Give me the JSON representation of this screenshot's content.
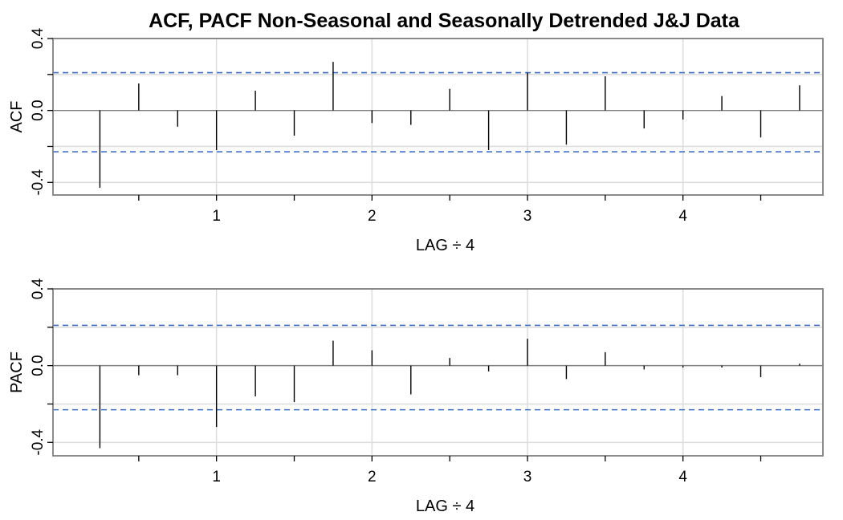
{
  "chart_data": {
    "title": "ACF, PACF Non-Seasonal and Seasonally Detrended J&J Data",
    "panels": [
      {
        "type": "bar",
        "ylabel": "ACF",
        "xlabel": "LAG ÷ 4",
        "x": [
          0.25,
          0.5,
          0.75,
          1.0,
          1.25,
          1.5,
          1.75,
          2.0,
          2.25,
          2.5,
          2.75,
          3.0,
          3.25,
          3.5,
          3.75,
          4.0,
          4.25,
          4.5,
          4.75
        ],
        "values": [
          -0.43,
          0.15,
          -0.09,
          -0.22,
          0.11,
          -0.14,
          0.27,
          -0.07,
          -0.08,
          0.12,
          -0.22,
          0.21,
          -0.19,
          0.19,
          -0.1,
          -0.05,
          0.08,
          -0.15,
          0.14
        ],
        "conf_upper": 0.21,
        "conf_lower": -0.23,
        "ylim": [
          -0.47,
          0.4
        ],
        "yticks": [
          "-0.4",
          "0.0",
          "0.4"
        ],
        "xticks": [
          "1",
          "2",
          "3",
          "4"
        ],
        "grid": true
      },
      {
        "type": "bar",
        "ylabel": "PACF",
        "xlabel": "LAG ÷ 4",
        "x": [
          0.25,
          0.5,
          0.75,
          1.0,
          1.25,
          1.5,
          1.75,
          2.0,
          2.25,
          2.5,
          2.75,
          3.0,
          3.25,
          3.5,
          3.75,
          4.0,
          4.25,
          4.5,
          4.75
        ],
        "values": [
          -0.43,
          -0.05,
          -0.05,
          -0.32,
          -0.16,
          -0.19,
          0.13,
          0.08,
          -0.15,
          0.04,
          -0.03,
          0.14,
          -0.07,
          0.07,
          -0.02,
          -0.01,
          -0.01,
          -0.06,
          0.01
        ],
        "conf_upper": 0.21,
        "conf_lower": -0.23,
        "ylim": [
          -0.47,
          0.4
        ],
        "yticks": [
          "-0.4",
          "0.0",
          "0.4"
        ],
        "xticks": [
          "1",
          "2",
          "3",
          "4"
        ],
        "grid": true
      }
    ]
  },
  "colors": {
    "frame": "#7f7f7f",
    "grid": "#dedede",
    "zero_line": "#7f7f7f",
    "bar": "#000000",
    "confidence": "#3d6fc9"
  }
}
